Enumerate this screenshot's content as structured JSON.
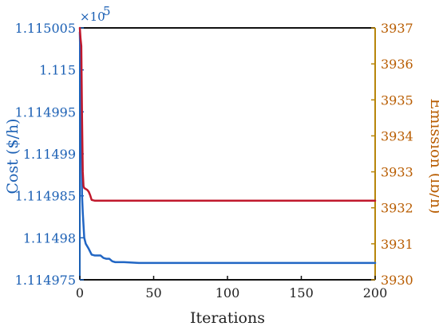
{
  "chart_data": {
    "type": "line",
    "title": "",
    "xlabel": "Iterations",
    "ylabel_left": "Cost ($/h)",
    "ylabel_right": "Emission (lb/h)",
    "left_axis_multiplier": "×10",
    "left_axis_exponent": "5",
    "xlim": [
      0,
      200
    ],
    "ylim_left": [
      1.114975,
      1.115005
    ],
    "ylim_right": [
      3930,
      3937
    ],
    "x_ticks": [
      "0",
      "50",
      "100",
      "150",
      "200"
    ],
    "x_tick_values": [
      0,
      50,
      100,
      150,
      200
    ],
    "left_ticks": [
      "1.115005",
      "1.115",
      "1.114995",
      "1.11499",
      "1.114985",
      "1.11498",
      "1.114975"
    ],
    "left_tick_values": [
      1.115005,
      1.115,
      1.114995,
      1.11499,
      1.114985,
      1.11498,
      1.114975
    ],
    "right_ticks": [
      "3937",
      "3936",
      "3935",
      "3934",
      "3933",
      "3932",
      "3931",
      "3930"
    ],
    "right_tick_values": [
      3937,
      3936,
      3935,
      3934,
      3933,
      3932,
      3931,
      3930
    ],
    "grid": false,
    "series": [
      {
        "axis": "left",
        "color": "#2166c4",
        "x": [
          0,
          0.5,
          1,
          1.5,
          2,
          3,
          4,
          6,
          8,
          10,
          12,
          14,
          16,
          18,
          20,
          22,
          24,
          26,
          30,
          40,
          60,
          100,
          150,
          200
        ],
        "y": [
          1.1150045,
          1.115,
          1.114993,
          1.114985,
          1.114983,
          1.11498,
          1.1149793,
          1.1149787,
          1.114978,
          1.1149779,
          1.1149779,
          1.1149779,
          1.1149776,
          1.1149775,
          1.1149775,
          1.1149772,
          1.1149771,
          1.1149771,
          1.1149771,
          1.114977,
          1.114977,
          1.114977,
          1.114977,
          1.114977
        ]
      },
      {
        "axis": "right",
        "color": "#c0182c",
        "x": [
          0,
          0.5,
          1,
          1.5,
          2,
          2.5,
          3,
          5,
          6,
          7,
          8,
          10,
          50,
          100,
          150,
          200
        ],
        "y": [
          3937,
          3936.7,
          3936.5,
          3934.5,
          3933.0,
          3932.6,
          3932.55,
          3932.5,
          3932.45,
          3932.35,
          3932.22,
          3932.2,
          3932.2,
          3932.2,
          3932.2,
          3932.2
        ]
      }
    ]
  }
}
